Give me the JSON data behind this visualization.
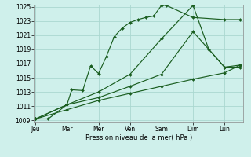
{
  "background_color": "#cff0eb",
  "grid_color": "#aad8d0",
  "line_color": "#1a5e20",
  "xlabel": "Pression niveau de la mer( hPa )",
  "ylim": [
    1009,
    1025
  ],
  "yticks": [
    1009,
    1011,
    1013,
    1015,
    1017,
    1019,
    1021,
    1023,
    1025
  ],
  "days": [
    "Jeu",
    "Mar",
    "Mer",
    "Ven",
    "Sam",
    "Dim",
    "Lun"
  ],
  "day_x": [
    0,
    2,
    4,
    6,
    8,
    10,
    12
  ],
  "xlim": [
    -0.1,
    13.2
  ],
  "series": [
    {
      "x": [
        0,
        0.8,
        2,
        2.3,
        3,
        3.5,
        4,
        4.5,
        5,
        5.5,
        6,
        6.5,
        7,
        7.5,
        8,
        8.3,
        10,
        12,
        13
      ],
      "y": [
        1009.2,
        1009.2,
        1011.2,
        1013.3,
        1013.2,
        1016.7,
        1015.6,
        1018.0,
        1020.8,
        1022.0,
        1022.8,
        1023.2,
        1023.5,
        1023.7,
        1025.2,
        1025.2,
        1023.5,
        1023.2,
        1023.2
      ]
    },
    {
      "x": [
        0,
        2,
        4,
        6,
        8,
        10,
        11,
        12,
        13
      ],
      "y": [
        1009.2,
        1011.2,
        1013.0,
        1015.5,
        1020.5,
        1025.2,
        1019.0,
        1016.5,
        1016.8
      ]
    },
    {
      "x": [
        0,
        2,
        4,
        6,
        8,
        10,
        12,
        13
      ],
      "y": [
        1009.2,
        1011.2,
        1012.2,
        1013.8,
        1015.5,
        1021.5,
        1016.5,
        1016.5
      ]
    },
    {
      "x": [
        0,
        2,
        4,
        6,
        8,
        10,
        12,
        13
      ],
      "y": [
        1009.2,
        1010.5,
        1011.8,
        1012.8,
        1013.8,
        1014.8,
        1015.7,
        1016.8
      ]
    }
  ]
}
